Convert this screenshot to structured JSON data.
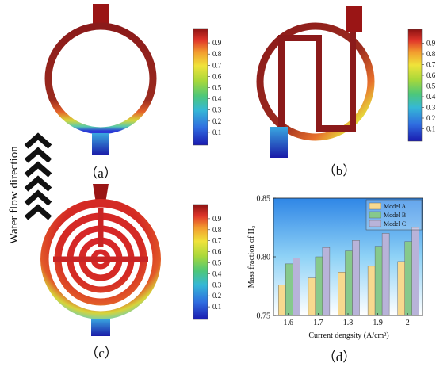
{
  "panels": {
    "a": {
      "label": "（a）",
      "colorbar_ticks": [
        "0.9",
        "0.8",
        "0.7",
        "0.6",
        "0.5",
        "0.4",
        "0.3",
        "0.2",
        "0.1"
      ]
    },
    "b": {
      "label": "（b）",
      "colorbar_ticks": [
        "0.9",
        "0.8",
        "0.7",
        "0.6",
        "0.5",
        "0.4",
        "0.3",
        "0.2",
        "0.1"
      ]
    },
    "c": {
      "label": "（c）",
      "colorbar_ticks": [
        "0.9",
        "0.8",
        "0.7",
        "0.6",
        "0.5",
        "0.4",
        "0.3",
        "0.2",
        "0.1"
      ]
    },
    "d": {
      "label": "（d）"
    }
  },
  "flow_text": "Water flow direction",
  "colors": {
    "high": "#8b1a1a",
    "low": "#2a2ad6"
  },
  "chart_data": {
    "type": "bar",
    "categories": [
      "1.6",
      "1.7",
      "1.8",
      "1.9",
      "2"
    ],
    "series": [
      {
        "name": "Model A",
        "values": [
          0.776,
          0.782,
          0.787,
          0.792,
          0.796
        ],
        "color": "#f7d98f"
      },
      {
        "name": "Model B",
        "values": [
          0.794,
          0.8,
          0.805,
          0.809,
          0.813
        ],
        "color": "#86c98c"
      },
      {
        "name": "Model C",
        "values": [
          0.799,
          0.808,
          0.814,
          0.82,
          0.825
        ],
        "color": "#b8b3d9"
      }
    ],
    "xlabel": "Current dengsity (A/cm²)",
    "ylabel": "Mass fraction of H₂",
    "ylim": [
      0.75,
      0.85
    ],
    "yticks": [
      "0.75",
      "0.80",
      "0.85"
    ],
    "legend": "top-right"
  }
}
